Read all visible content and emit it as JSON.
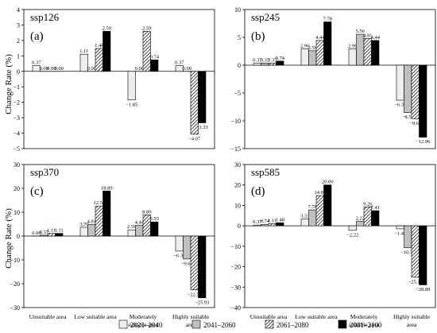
{
  "ylabel": "Change Rate (%)",
  "categories": [
    "Unsuitable area",
    "Low suitable area",
    "Moderately suitable area",
    "Highly suitable area"
  ],
  "category_lines": [
    [
      "Unsuitable area"
    ],
    [
      "Low suitable area"
    ],
    [
      "Moderately",
      "suitable area"
    ],
    [
      "Highly suitable",
      "area"
    ]
  ],
  "legend": [
    {
      "name": "2021–2040",
      "pattern": "light"
    },
    {
      "name": "2041–2060",
      "pattern": "gray"
    },
    {
      "name": "2061–2080",
      "pattern": "hatch"
    },
    {
      "name": "2081–2100",
      "pattern": "black"
    }
  ],
  "colors": {
    "light": "#eeeeee",
    "gray": "#c0c0c0",
    "black": "#000000",
    "outline": "#000000",
    "hatch_bg": "#ffffff"
  },
  "chart_data": [
    {
      "type": "bar",
      "title": "ssp126",
      "label": "(a)",
      "ylim": [
        -5,
        4
      ],
      "yticks": [
        -5,
        -4,
        -3,
        -2,
        -1,
        0,
        1,
        2,
        3,
        4
      ],
      "series": [
        {
          "name": "2021–2040",
          "values": [
            0.37,
            1.11,
            -1.85,
            0.37
          ],
          "labels": [
            "0.37",
            "1.11",
            "−1.85",
            "0.37"
          ]
        },
        {
          "name": "2041–2060",
          "values": [
            0.0,
            0.0,
            0.0,
            0.0
          ],
          "labels": [
            "0.00",
            "0.00",
            "0.00",
            "0.00"
          ]
        },
        {
          "name": "2061–2080",
          "values": [
            0.0,
            1.48,
            2.59,
            -4.07
          ],
          "labels": [
            "0.00",
            "1.48",
            "2.59",
            "−4.07"
          ]
        },
        {
          "name": "2081–2100",
          "values": [
            0.0,
            2.59,
            0.74,
            -3.33
          ],
          "labels": [
            "0.00",
            "2.59",
            "0.74",
            "−3.33"
          ]
        }
      ]
    },
    {
      "type": "bar",
      "title": "ssp245",
      "label": "(b)",
      "ylim": [
        -15,
        10
      ],
      "yticks": [
        -15,
        -10,
        -5,
        0,
        5,
        10
      ],
      "series": [
        {
          "name": "2021–2040",
          "values": [
            0.37,
            2.96,
            2.96,
            -6.3
          ],
          "labels": [
            "0.37",
            "2.96",
            "2.96",
            "−6.30"
          ]
        },
        {
          "name": "2041–2060",
          "values": [
            0.37,
            2.59,
            5.56,
            -8.52
          ],
          "labels": [
            "0.37",
            "2.59",
            "5.56",
            "−8.52"
          ]
        },
        {
          "name": "2061–2080",
          "values": [
            0.37,
            4.44,
            4.81,
            -9.63
          ],
          "labels": [
            "0.37",
            "4.44",
            "4.81",
            "−9.63"
          ]
        },
        {
          "name": "2081–2100",
          "values": [
            0.74,
            7.78,
            4.44,
            -12.96
          ],
          "labels": [
            "0.74",
            "7.78",
            "4.44",
            "−12.96"
          ]
        }
      ]
    },
    {
      "type": "bar",
      "title": "ssp370",
      "label": "(c)",
      "ylim": [
        -30,
        30
      ],
      "yticks": [
        -30,
        -20,
        -10,
        0,
        10,
        20,
        30
      ],
      "series": [
        {
          "name": "2021–2040",
          "values": [
            0.0,
            3.7,
            2.59,
            -6.3
          ],
          "labels": [
            "0.00",
            "3.70",
            "2.59",
            "−6.30"
          ]
        },
        {
          "name": "2041–2060",
          "values": [
            0.37,
            4.81,
            4.44,
            -9.63
          ],
          "labels": [
            "0.37",
            "4.81",
            "4.44",
            "−9.63"
          ]
        },
        {
          "name": "2061–2080",
          "values": [
            1.11,
            12.59,
            8.89,
            -22.59
          ],
          "labels": [
            "1.11",
            "12.59",
            "8.89",
            "−22.59"
          ]
        },
        {
          "name": "2081–2100",
          "values": [
            1.11,
            18.89,
            5.93,
            -25.93
          ],
          "labels": [
            "1.11",
            "18.89",
            "5.93",
            "−25.93"
          ]
        }
      ]
    },
    {
      "type": "bar",
      "title": "ssp585",
      "label": "(d)",
      "ylim": [
        -40,
        30
      ],
      "yticks": [
        -40,
        -30,
        -20,
        -10,
        0,
        10,
        20,
        30
      ],
      "series": [
        {
          "name": "2021–2040",
          "values": [
            0.37,
            3.33,
            -2.22,
            -1.48
          ],
          "labels": [
            "0.37",
            "3.33",
            "−2.22",
            "−1.48"
          ]
        },
        {
          "name": "2041–2060",
          "values": [
            0.74,
            7.78,
            2.22,
            -10.74
          ],
          "labels": [
            "0.74",
            "7.78",
            "2.22",
            "−10.74"
          ]
        },
        {
          "name": "2061–2080",
          "values": [
            1.11,
            14.81,
            9.26,
            -25.19
          ],
          "labels": [
            "1.11",
            "14.81",
            "9.26",
            "−25.19"
          ]
        },
        {
          "name": "2081–2100",
          "values": [
            1.48,
            20.0,
            7.41,
            -28.89
          ],
          "labels": [
            "1.48",
            "20.00",
            "7.41",
            "−28.89"
          ]
        }
      ]
    }
  ]
}
